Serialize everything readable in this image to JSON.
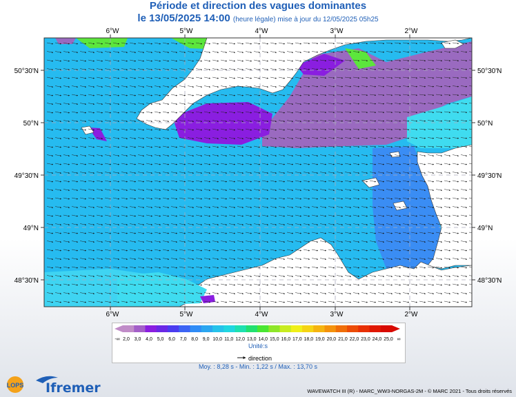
{
  "title": "Période et direction des vagues dominantes",
  "subtitle_date": "le 13/05/2025 14:00",
  "subtitle_update": "(heure légale) mise à jour du 12/05/2025 05h25",
  "longitude_labels": [
    "6°W",
    "5°W",
    "4°W",
    "3°W",
    "2°W"
  ],
  "latitude_labels": [
    "50°30'N",
    "50°N",
    "49°30'N",
    "49°N",
    "48°30'N"
  ],
  "legend": {
    "values": [
      "2,0",
      "3,0",
      "4,0",
      "5,0",
      "6,0",
      "7,0",
      "8,0",
      "9,0",
      "10,0",
      "11,0",
      "12,0",
      "13,0",
      "14,0",
      "15,0",
      "16,0",
      "17,0",
      "18,0",
      "19,0",
      "20,0",
      "21,0",
      "22,0",
      "23,0",
      "24,0",
      "25,0"
    ],
    "low_symbol": "-∞",
    "high_symbol": "∞",
    "colors": [
      "#c08cc8",
      "#a35fc8",
      "#8a1ee0",
      "#6a28e6",
      "#4b3cf0",
      "#3c64f4",
      "#2f8cf6",
      "#2ba6f0",
      "#26c2ea",
      "#20d6e0",
      "#1ee0b0",
      "#22e070",
      "#4ae632",
      "#8ee628",
      "#c8ec20",
      "#f0f018",
      "#f5d414",
      "#f5b410",
      "#f4920c",
      "#f06e08",
      "#ec4c06",
      "#e83004",
      "#e01802",
      "#d80a00"
    ],
    "unit": "Unité:s",
    "direction_label": "direction"
  },
  "stats": "Moy. : 8,28 s  -  Min. : 1,22 s / Max. : 13,70 s",
  "footer": "WAVEWATCH III (R) - MARC_WW3-NORGAS-2M - © MARC 2021 - Tous droits réservés",
  "logo_text": "Ifremer",
  "lops_text": "LOPS",
  "map_colors": {
    "sea_blue": "#26bbf0",
    "purple_band": "#9a6ac0",
    "violet": "#8a1ee0",
    "cyan": "#3fdcf0",
    "deep_blue": "#3a8df4",
    "green": "#5ce63c",
    "land": "#ffffff",
    "outside": "#ffffff"
  }
}
